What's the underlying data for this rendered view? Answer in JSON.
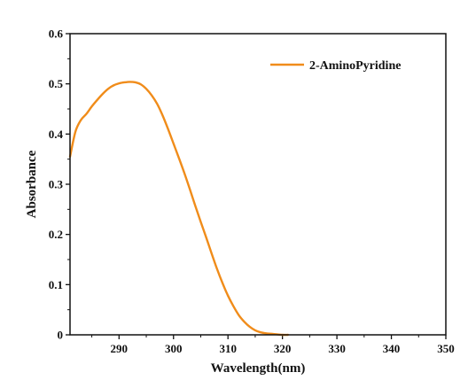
{
  "chart_data": {
    "type": "line",
    "title": "",
    "xlabel": "Wavelength(nm)",
    "ylabel": "Absorbance",
    "xlim": [
      281,
      350
    ],
    "ylim": [
      0,
      0.6
    ],
    "xticks": [
      290,
      300,
      310,
      320,
      330,
      340,
      350
    ],
    "xtick_labels": [
      "290",
      "300",
      "310",
      "320",
      "330",
      "340",
      "350"
    ],
    "yticks": [
      0,
      0.1,
      0.2,
      0.3,
      0.4,
      0.5,
      0.6
    ],
    "ytick_labels": [
      "0",
      "0.1",
      "0.2",
      "0.3",
      "0.4",
      "0.5",
      "0.6"
    ],
    "grid": false,
    "legend": {
      "position": "top-right"
    },
    "series": [
      {
        "name": "2-AminoPyridine",
        "color": "#f08c1a",
        "x": [
          281,
          282,
          283,
          284,
          285,
          286,
          287,
          288,
          289,
          290,
          291,
          292,
          293,
          294,
          295,
          296,
          297,
          298,
          299,
          300,
          301,
          302,
          303,
          304,
          305,
          306,
          307,
          308,
          309,
          310,
          311,
          312,
          313,
          314,
          315,
          316,
          317,
          318,
          319,
          320,
          321
        ],
        "values": [
          0.355,
          0.405,
          0.428,
          0.44,
          0.455,
          0.468,
          0.48,
          0.49,
          0.497,
          0.501,
          0.503,
          0.504,
          0.503,
          0.499,
          0.49,
          0.477,
          0.46,
          0.437,
          0.41,
          0.381,
          0.352,
          0.322,
          0.29,
          0.257,
          0.225,
          0.194,
          0.162,
          0.131,
          0.103,
          0.078,
          0.057,
          0.039,
          0.026,
          0.016,
          0.009,
          0.005,
          0.003,
          0.002,
          0.001,
          0.0,
          0.0
        ]
      }
    ]
  }
}
